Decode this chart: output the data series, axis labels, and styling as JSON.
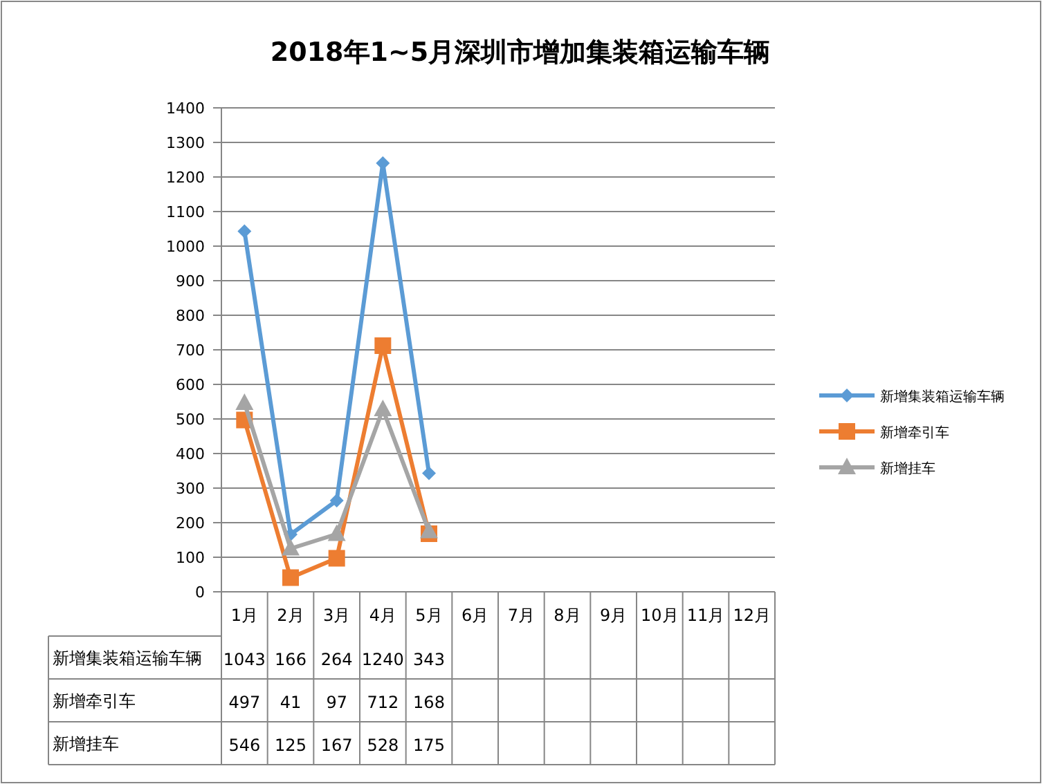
{
  "chart_data": {
    "type": "line",
    "title": "2018年1~5月深圳市增加集装箱运输车辆",
    "categories": [
      "1月",
      "2月",
      "3月",
      "4月",
      "5月",
      "6月",
      "7月",
      "8月",
      "9月",
      "10月",
      "11月",
      "12月"
    ],
    "series": [
      {
        "name": "新增集装箱运输车辆",
        "color": "#5b9bd5",
        "marker": "diamond",
        "values": [
          1043,
          166,
          264,
          1240,
          343,
          null,
          null,
          null,
          null,
          null,
          null,
          null
        ]
      },
      {
        "name": "新增牵引车",
        "color": "#ed7d31",
        "marker": "square",
        "values": [
          497,
          41,
          97,
          712,
          168,
          null,
          null,
          null,
          null,
          null,
          null,
          null
        ]
      },
      {
        "name": "新增挂车",
        "color": "#a5a5a5",
        "marker": "triangle",
        "values": [
          546,
          125,
          167,
          528,
          175,
          null,
          null,
          null,
          null,
          null,
          null,
          null
        ]
      }
    ],
    "ylim": [
      0,
      1400
    ],
    "yticks": [
      0,
      100,
      200,
      300,
      400,
      500,
      600,
      700,
      800,
      900,
      1000,
      1100,
      1200,
      1300,
      1400
    ],
    "grid": "y",
    "legend": "right",
    "data_labels": true,
    "line_style": "solid"
  }
}
